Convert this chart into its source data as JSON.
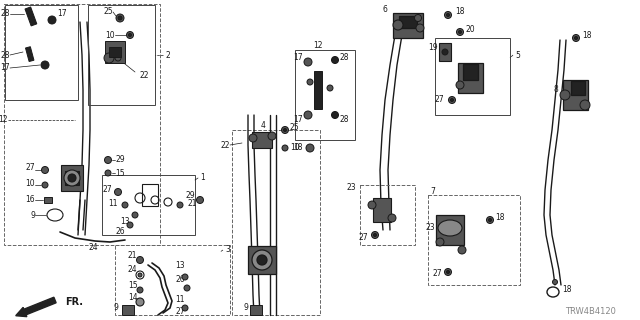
{
  "bg_color": "#ffffff",
  "line_color": "#1a1a1a",
  "diagram_code": "TRW4B4120",
  "gray_part": "#555555",
  "dark_part": "#222222",
  "med_gray": "#888888",
  "light_gray": "#aaaaaa"
}
